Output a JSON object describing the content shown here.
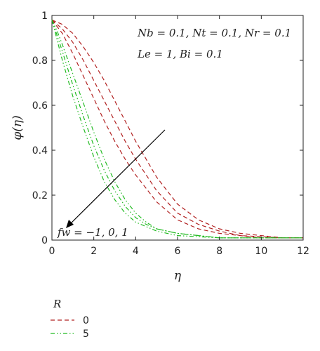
{
  "chart_data": {
    "type": "line",
    "xlabel": "η",
    "ylabel": "φ(η)",
    "xlim": [
      0,
      12
    ],
    "ylim": [
      0,
      1
    ],
    "xticks": [
      "0",
      "2",
      "4",
      "6",
      "8",
      "10",
      "12"
    ],
    "yticks": [
      "0",
      "0.2",
      "0.4",
      "0.6",
      "0.8",
      "1"
    ],
    "grid": false,
    "annotations": {
      "params_line1": "Nb = 0.1, Nt = 0.1, Nr = 0.1",
      "params_line2": "Le = 1, Bi = 0.1",
      "arrow_label": "fw = −1, 0, 1",
      "arrow_direction": "decreasing fw toward lower left"
    },
    "legend": {
      "title": "R",
      "placement": "below-left",
      "entries": [
        {
          "label": "0",
          "color": "#b22222",
          "style": "dashed"
        },
        {
          "label": "5",
          "color": "#22bb22",
          "style": "dash-dot-dot"
        }
      ]
    },
    "series": [
      {
        "group": "R = 0",
        "fw": "-1",
        "color": "#b22222",
        "style": "dashed",
        "x": [
          0,
          0.5,
          1,
          1.5,
          2,
          2.5,
          3,
          3.5,
          4,
          4.5,
          5,
          5.5,
          6,
          7,
          8,
          9,
          10,
          11,
          12
        ],
        "y": [
          0.98,
          0.96,
          0.92,
          0.86,
          0.79,
          0.71,
          0.62,
          0.53,
          0.44,
          0.36,
          0.28,
          0.22,
          0.16,
          0.09,
          0.05,
          0.03,
          0.02,
          0.01,
          0.01
        ]
      },
      {
        "group": "R = 0",
        "fw": "0",
        "color": "#b22222",
        "style": "dashed",
        "x": [
          0,
          0.5,
          1,
          1.5,
          2,
          2.5,
          3,
          3.5,
          4,
          4.5,
          5,
          5.5,
          6,
          7,
          8,
          9,
          10,
          11,
          12
        ],
        "y": [
          0.98,
          0.94,
          0.88,
          0.8,
          0.71,
          0.62,
          0.53,
          0.44,
          0.36,
          0.29,
          0.22,
          0.17,
          0.12,
          0.07,
          0.04,
          0.02,
          0.015,
          0.01,
          0.01
        ]
      },
      {
        "group": "R = 0",
        "fw": "1",
        "color": "#b22222",
        "style": "dashed",
        "x": [
          0,
          0.5,
          1,
          1.5,
          2,
          2.5,
          3,
          3.5,
          4,
          4.5,
          5,
          5.5,
          6,
          7,
          8,
          9,
          10,
          11,
          12
        ],
        "y": [
          0.98,
          0.92,
          0.83,
          0.73,
          0.63,
          0.53,
          0.44,
          0.36,
          0.29,
          0.23,
          0.17,
          0.13,
          0.09,
          0.05,
          0.03,
          0.02,
          0.01,
          0.01,
          0.01
        ]
      },
      {
        "group": "R = 5",
        "fw": "-1",
        "color": "#22bb22",
        "style": "dash-dot-dot",
        "x": [
          0,
          0.25,
          0.5,
          1,
          1.5,
          2,
          2.5,
          3,
          3.5,
          4,
          4.5,
          5,
          6,
          7,
          8,
          9,
          10,
          12
        ],
        "y": [
          0.98,
          0.93,
          0.87,
          0.74,
          0.61,
          0.48,
          0.36,
          0.26,
          0.18,
          0.12,
          0.08,
          0.05,
          0.03,
          0.02,
          0.01,
          0.01,
          0.01,
          0.01
        ]
      },
      {
        "group": "R = 5",
        "fw": "0",
        "color": "#22bb22",
        "style": "dash-dot-dot",
        "x": [
          0,
          0.25,
          0.5,
          1,
          1.5,
          2,
          2.5,
          3,
          3.5,
          4,
          4.5,
          5,
          6,
          7,
          8,
          9,
          10,
          12
        ],
        "y": [
          0.98,
          0.91,
          0.84,
          0.69,
          0.55,
          0.42,
          0.31,
          0.22,
          0.15,
          0.1,
          0.07,
          0.05,
          0.03,
          0.02,
          0.01,
          0.01,
          0.01,
          0.01
        ]
      },
      {
        "group": "R = 5",
        "fw": "1",
        "color": "#22bb22",
        "style": "dash-dot-dot",
        "x": [
          0,
          0.25,
          0.5,
          1,
          1.5,
          2,
          2.5,
          3,
          3.5,
          4,
          4.5,
          5,
          6,
          7,
          8,
          9,
          10,
          12
        ],
        "y": [
          0.98,
          0.89,
          0.8,
          0.64,
          0.5,
          0.37,
          0.26,
          0.18,
          0.12,
          0.08,
          0.06,
          0.04,
          0.02,
          0.015,
          0.01,
          0.01,
          0.01,
          0.01
        ]
      }
    ]
  }
}
